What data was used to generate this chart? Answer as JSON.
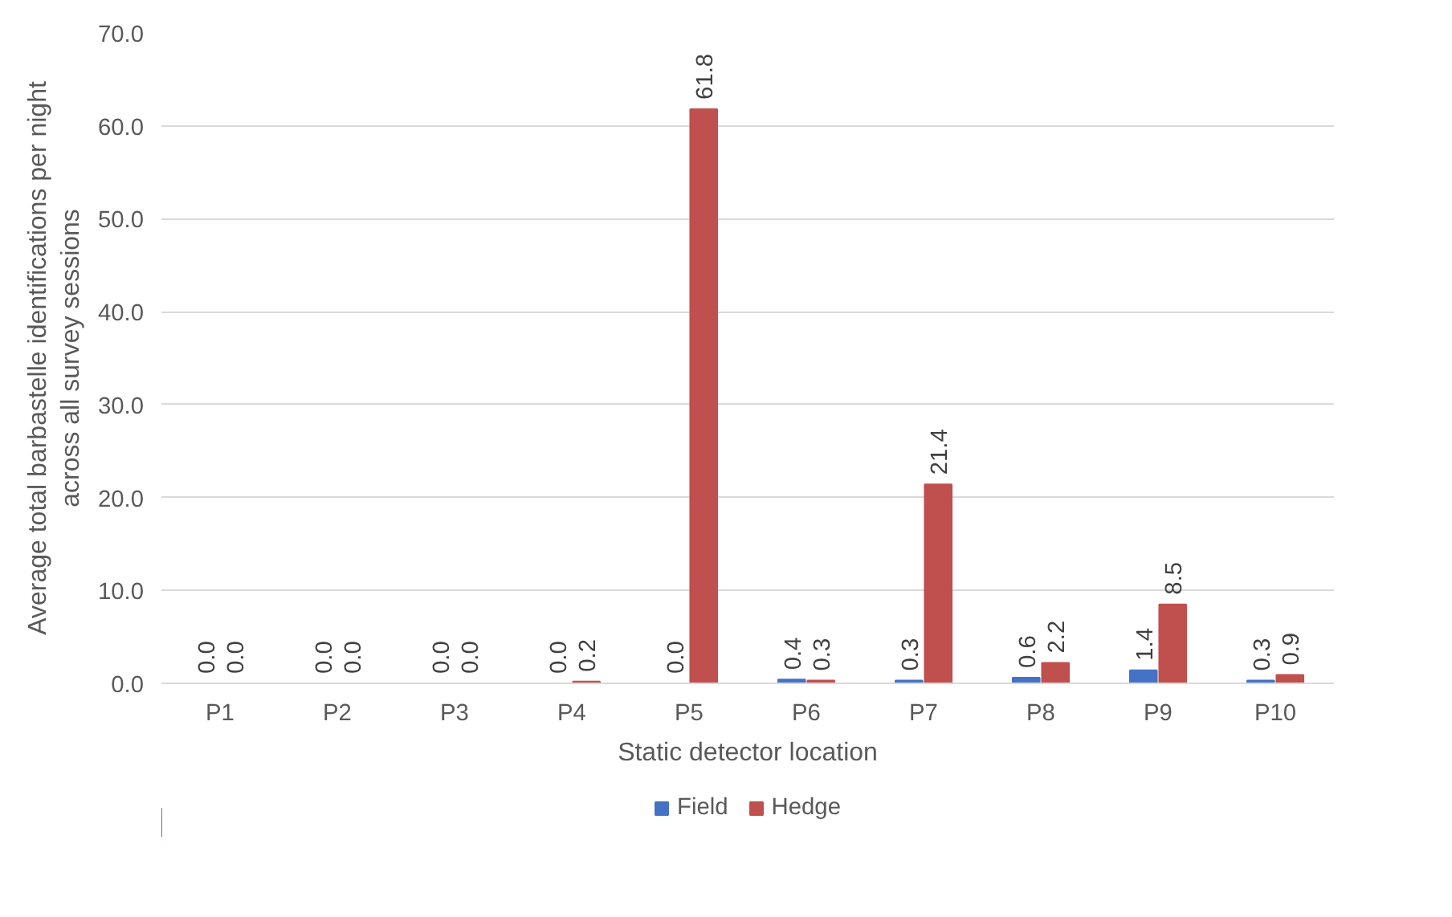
{
  "chart_data": {
    "type": "bar",
    "xlabel": "Static detector location",
    "ylabel": "Average total barbastelle identifications per night\nacross all survey sessions",
    "categories": [
      "P1",
      "P2",
      "P3",
      "P4",
      "P5",
      "P6",
      "P7",
      "P8",
      "P9",
      "P10"
    ],
    "series": [
      {
        "name": "Field",
        "color": "#4472c4",
        "values": [
          0,
          0,
          0,
          0,
          0,
          0.4,
          0.3,
          0.6,
          1.4,
          0.3
        ],
        "value_labels": [
          "0.0",
          "0.0",
          "0.0",
          "0.0",
          "0.0",
          "0.4",
          "0.3",
          "0.6",
          "1.4",
          "0.3"
        ]
      },
      {
        "name": "Hedge",
        "color": "#c0504d",
        "values": [
          0,
          0,
          0,
          0.2,
          61.8,
          0.3,
          21.4,
          2.2,
          8.5,
          0.9
        ],
        "value_labels": [
          "0.0",
          "0.0",
          "0.0",
          "0.2",
          "61.8",
          "0.3",
          "21.4",
          "2.2",
          "8.5",
          "0.9"
        ]
      }
    ],
    "ylim": [
      0,
      70
    ],
    "yticks": [
      {
        "value": 0,
        "label": "0.0"
      },
      {
        "value": 10,
        "label": "10.0"
      },
      {
        "value": 20,
        "label": "20.0"
      },
      {
        "value": 30,
        "label": "30.0"
      },
      {
        "value": 40,
        "label": "40.0"
      },
      {
        "value": 50,
        "label": "50.0"
      },
      {
        "value": 60,
        "label": "60.0"
      },
      {
        "value": 70,
        "label": "70.0"
      }
    ],
    "grid": "y",
    "legend": "bottom"
  }
}
